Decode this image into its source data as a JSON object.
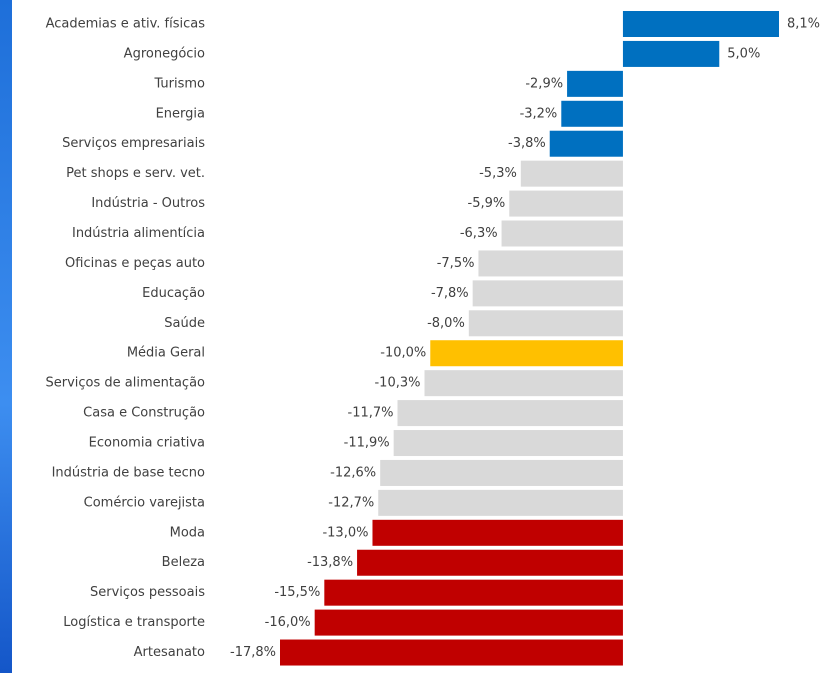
{
  "chart_data": {
    "type": "bar",
    "orientation": "horizontal",
    "categories": [
      "Academias e ativ. físicas",
      "Agronegócio",
      "Turismo",
      "Energia",
      "Serviços empresariais",
      "Pet shops e serv. vet.",
      "Indústria - Outros",
      "Indústria alimentícia",
      "Oficinas e peças auto",
      "Educação",
      "Saúde",
      "Média Geral",
      "Serviços de alimentação",
      "Casa e Construção",
      "Economia criativa",
      "Indústria de base tecno",
      "Comércio varejista",
      "Moda",
      "Beleza",
      "Serviços pessoais",
      "Logística e transporte",
      "Artesanato"
    ],
    "values": [
      8.1,
      5.0,
      -2.9,
      -3.2,
      -3.8,
      -5.3,
      -5.9,
      -6.3,
      -7.5,
      -7.8,
      -8.0,
      -10.0,
      -10.3,
      -11.7,
      -11.9,
      -12.6,
      -12.7,
      -13.0,
      -13.8,
      -15.5,
      -16.0,
      -17.8
    ],
    "value_labels": [
      "8,1%",
      "5,0%",
      "-2,9%",
      "-3,2%",
      "-3,8%",
      "-5,3%",
      "-5,9%",
      "-6,3%",
      "-7,5%",
      "-7,8%",
      "-8,0%",
      "-10,0%",
      "-10,3%",
      "-11,7%",
      "-11,9%",
      "-12,6%",
      "-12,7%",
      "-13,0%",
      "-13,8%",
      "-15,5%",
      "-16,0%",
      "-17,8%"
    ],
    "colors": [
      "#0070c0",
      "#0070c0",
      "#0070c0",
      "#0070c0",
      "#0070c0",
      "#d9d9d9",
      "#d9d9d9",
      "#d9d9d9",
      "#d9d9d9",
      "#d9d9d9",
      "#d9d9d9",
      "#ffc000",
      "#d9d9d9",
      "#d9d9d9",
      "#d9d9d9",
      "#d9d9d9",
      "#d9d9d9",
      "#c00000",
      "#c00000",
      "#c00000",
      "#c00000",
      "#c00000"
    ]
  }
}
